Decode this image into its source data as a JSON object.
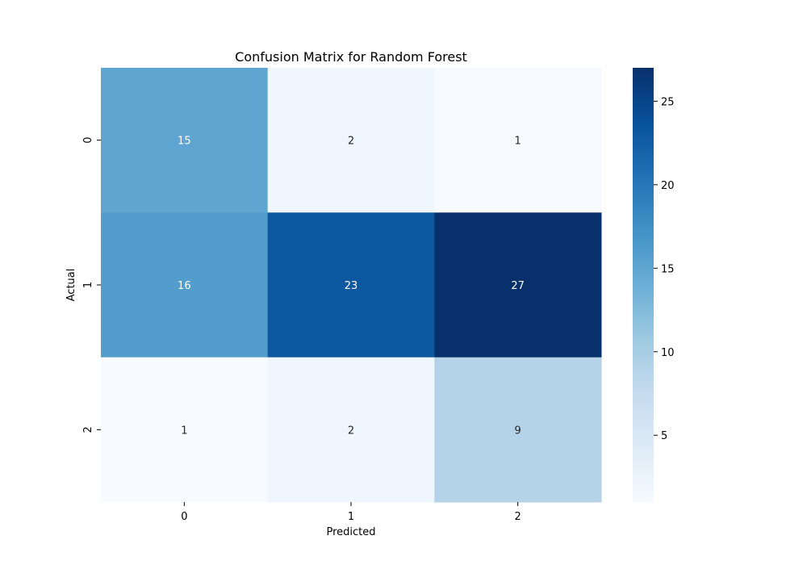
{
  "chart_data": {
    "type": "heatmap",
    "title": "Confusion Matrix for Random Forest",
    "xlabel": "Predicted",
    "ylabel": "Actual",
    "x_categories": [
      "0",
      "1",
      "2"
    ],
    "y_categories": [
      "0",
      "1",
      "2"
    ],
    "matrix": [
      [
        15,
        2,
        1
      ],
      [
        16,
        23,
        27
      ],
      [
        1,
        2,
        9
      ]
    ],
    "annotations": true,
    "colormap": "Blues",
    "colorbar": {
      "range": [
        1,
        27
      ],
      "ticks": [
        5,
        10,
        15,
        20,
        25
      ]
    },
    "annotation_colors": {
      "dark_cell": "#ffffff",
      "light_cell": "#262626"
    }
  }
}
